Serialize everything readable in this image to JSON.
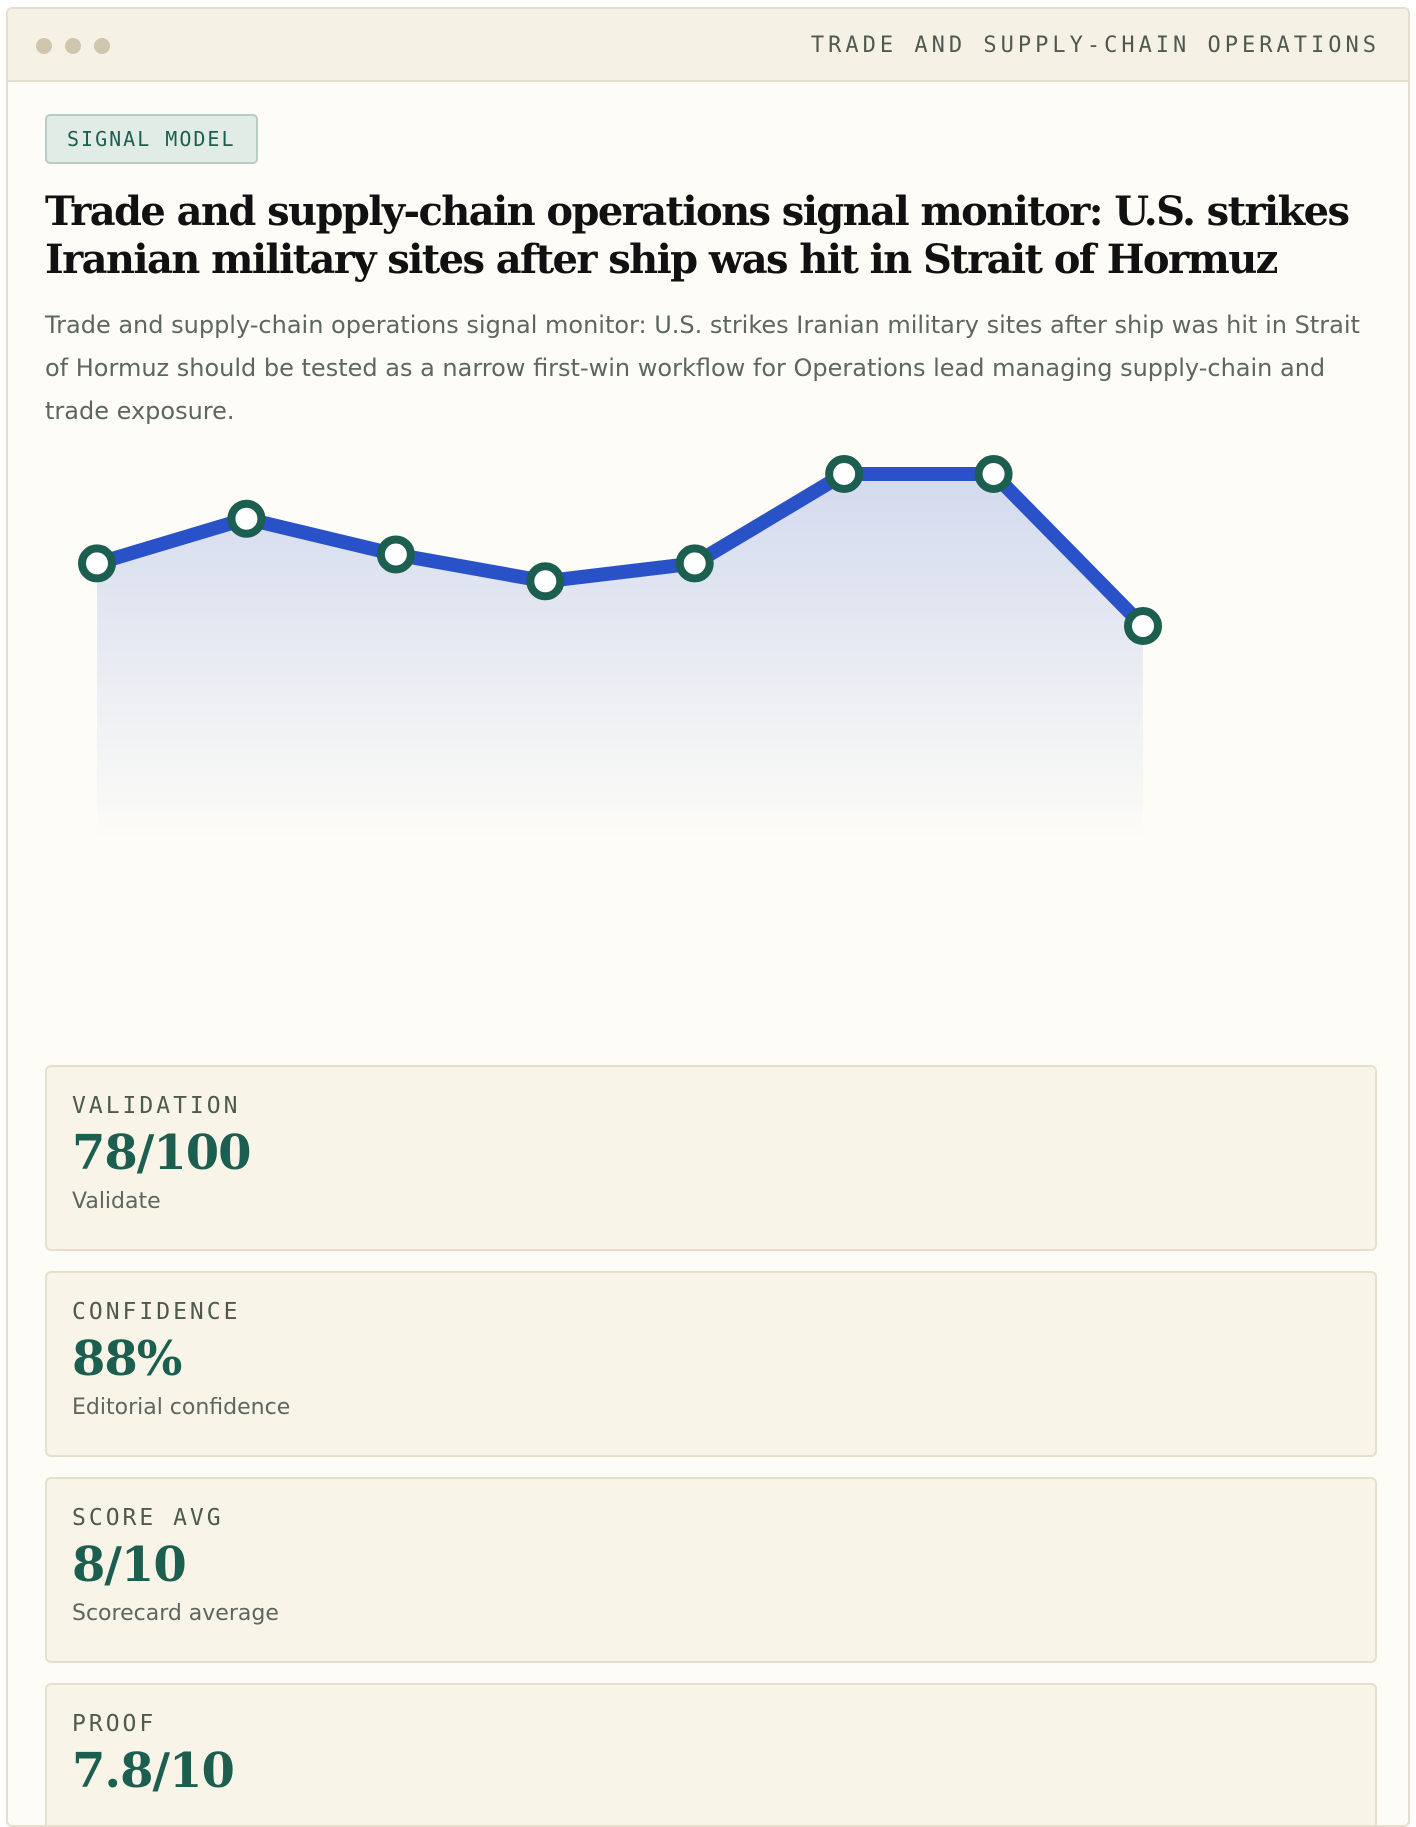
{
  "window": {
    "title": "TRADE AND SUPPLY-CHAIN OPERATIONS"
  },
  "badge": "SIGNAL MODEL",
  "headline": "Trade and supply-chain operations signal monitor: U.S. strikes Iranian military sites after ship was hit in Strait of Hormuz",
  "description": "Trade and supply-chain operations signal monitor: U.S. strikes Iranian military sites after ship was hit in Strait of Hormuz should be tested as a narrow first-win workflow for Operations lead managing supply-chain and trade exposure.",
  "colors": {
    "line": "#2952c8",
    "marker": "#1c5e4f",
    "accent": "#1c5e4f"
  },
  "chart_data": {
    "type": "area",
    "x": [
      1,
      2,
      3,
      4,
      5,
      6,
      7,
      8
    ],
    "values": [
      63,
      68,
      64,
      61,
      63,
      73,
      73,
      56
    ],
    "ylim": [
      20,
      80
    ],
    "grid": false,
    "legend": "none"
  },
  "metrics": [
    {
      "label": "VALIDATION",
      "value": "78/100",
      "caption": "Validate"
    },
    {
      "label": "CONFIDENCE",
      "value": "88%",
      "caption": "Editorial confidence"
    },
    {
      "label": "SCORE AVG",
      "value": "8/10",
      "caption": "Scorecard average"
    },
    {
      "label": "PROOF",
      "value": "7.8/10",
      "caption": ""
    }
  ]
}
